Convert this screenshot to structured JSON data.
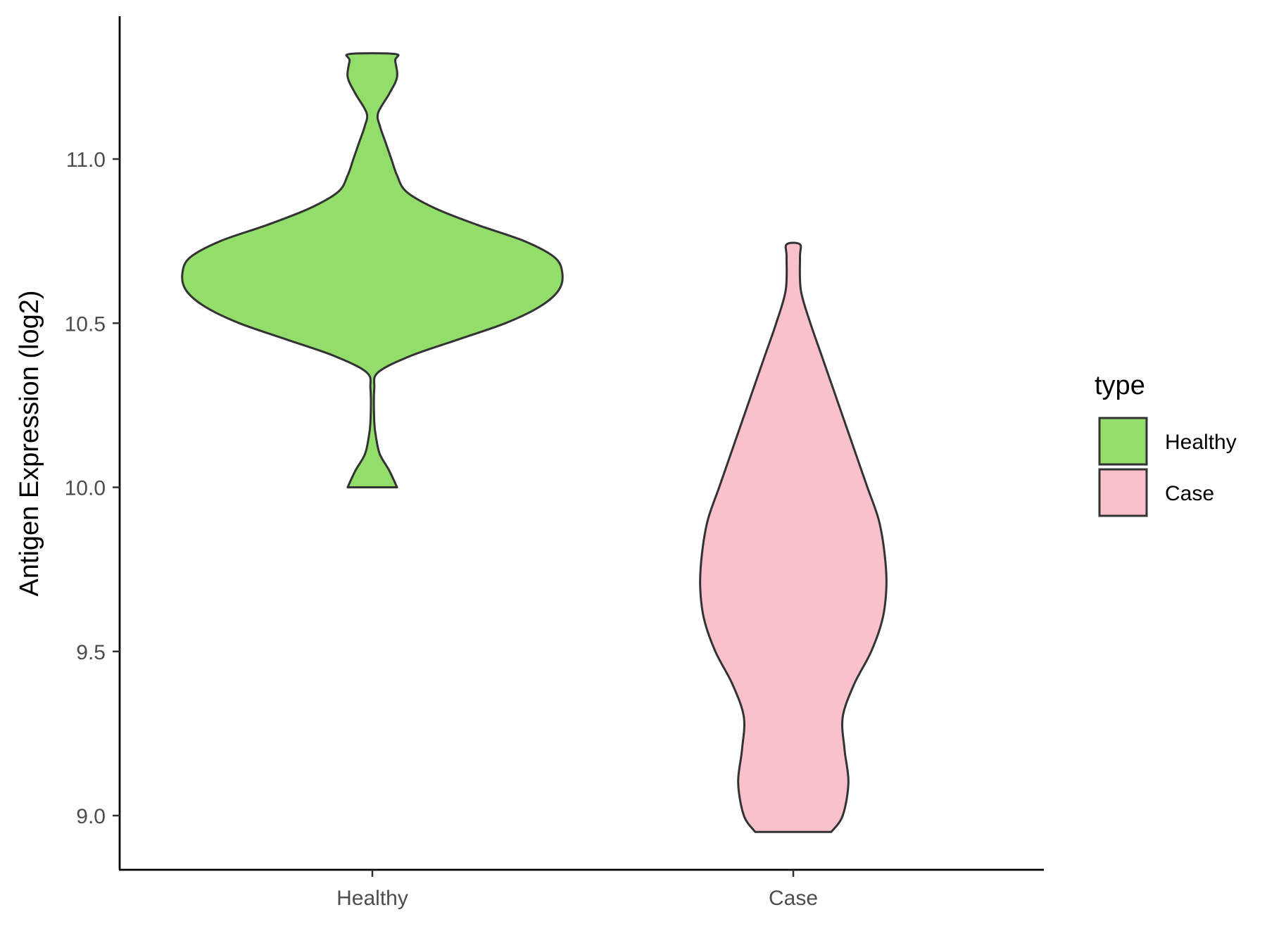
{
  "chart_data": {
    "type": "violin",
    "ylabel": "Antigen Expression (log2)",
    "xlabel": "",
    "categories": [
      "Healthy",
      "Case"
    ],
    "yticks": [
      9.0,
      9.5,
      10.0,
      10.5,
      11.0
    ],
    "ytick_labels": [
      "9.0",
      "9.5",
      "10.0",
      "10.5",
      "11.0"
    ],
    "ylim": [
      8.83,
      11.43
    ],
    "grid": false,
    "legend": {
      "title": "type",
      "position": "right",
      "entries": [
        "Healthy",
        "Case"
      ]
    },
    "series": [
      {
        "name": "Healthy",
        "color": "#93dd6b",
        "min": 10.0,
        "max": 11.32,
        "density_profile": [
          [
            10.0,
            0.13
          ],
          [
            10.05,
            0.09
          ],
          [
            10.1,
            0.04
          ],
          [
            10.15,
            0.02
          ],
          [
            10.2,
            0.01
          ],
          [
            10.3,
            0.01
          ],
          [
            10.35,
            0.03
          ],
          [
            10.4,
            0.2
          ],
          [
            10.45,
            0.45
          ],
          [
            10.5,
            0.7
          ],
          [
            10.55,
            0.88
          ],
          [
            10.6,
            0.98
          ],
          [
            10.65,
            1.0
          ],
          [
            10.7,
            0.96
          ],
          [
            10.75,
            0.8
          ],
          [
            10.8,
            0.55
          ],
          [
            10.85,
            0.33
          ],
          [
            10.9,
            0.18
          ],
          [
            10.95,
            0.13
          ],
          [
            11.0,
            0.1
          ],
          [
            11.05,
            0.07
          ],
          [
            11.1,
            0.04
          ],
          [
            11.14,
            0.03
          ],
          [
            11.2,
            0.09
          ],
          [
            11.25,
            0.13
          ],
          [
            11.3,
            0.12
          ],
          [
            11.32,
            0.12
          ]
        ]
      },
      {
        "name": "Case",
        "color": "#f8c1cb",
        "min": 8.95,
        "max": 10.74,
        "density_profile": [
          [
            8.95,
            0.2
          ],
          [
            9.0,
            0.26
          ],
          [
            9.1,
            0.29
          ],
          [
            9.2,
            0.27
          ],
          [
            9.3,
            0.26
          ],
          [
            9.4,
            0.32
          ],
          [
            9.5,
            0.41
          ],
          [
            9.6,
            0.47
          ],
          [
            9.7,
            0.49
          ],
          [
            9.8,
            0.48
          ],
          [
            9.9,
            0.45
          ],
          [
            10.0,
            0.39
          ],
          [
            10.1,
            0.33
          ],
          [
            10.2,
            0.27
          ],
          [
            10.3,
            0.21
          ],
          [
            10.4,
            0.15
          ],
          [
            10.5,
            0.09
          ],
          [
            10.6,
            0.04
          ],
          [
            10.7,
            0.035
          ],
          [
            10.74,
            0.035
          ]
        ]
      }
    ]
  }
}
